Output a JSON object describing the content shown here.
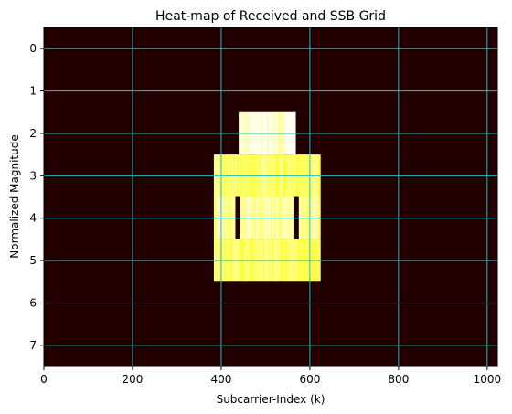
{
  "chart_data": {
    "type": "heatmap",
    "title": "Heat-map of Received and SSB Grid",
    "xlabel": "Subcarrier-Index (k)",
    "ylabel": "Normalized Magnitude",
    "xlim": [
      0,
      1023
    ],
    "ylim": [
      7.5,
      -0.5
    ],
    "x_ticks": [
      0,
      200,
      400,
      600,
      800,
      1000
    ],
    "y_ticks": [
      0,
      1,
      2,
      3,
      4,
      5,
      6,
      7
    ],
    "grid": true,
    "colormap": "hot",
    "background_value": 0.05,
    "blocks": [
      {
        "symbol": 2,
        "k_start": 440,
        "k_end": 567,
        "value": 0.95
      },
      {
        "symbol": 3,
        "k_start": 384,
        "k_end": 623,
        "value": 0.85
      },
      {
        "symbol": 4,
        "k_start": 384,
        "k_end": 623,
        "value": 0.9
      },
      {
        "symbol": 5,
        "k_start": 384,
        "k_end": 623,
        "value": 0.85
      }
    ],
    "dark_markers": [
      {
        "symbol": 4,
        "k_start": 432,
        "k_end": 442,
        "value": 0.05
      },
      {
        "symbol": 4,
        "k_start": 565,
        "k_end": 575,
        "value": 0.05
      }
    ]
  },
  "colors": {
    "background": "#120000",
    "grid": "#16c0c0",
    "pss": "#ffffd0",
    "sss_pbch": "#ffd900",
    "marker": "#000000"
  }
}
